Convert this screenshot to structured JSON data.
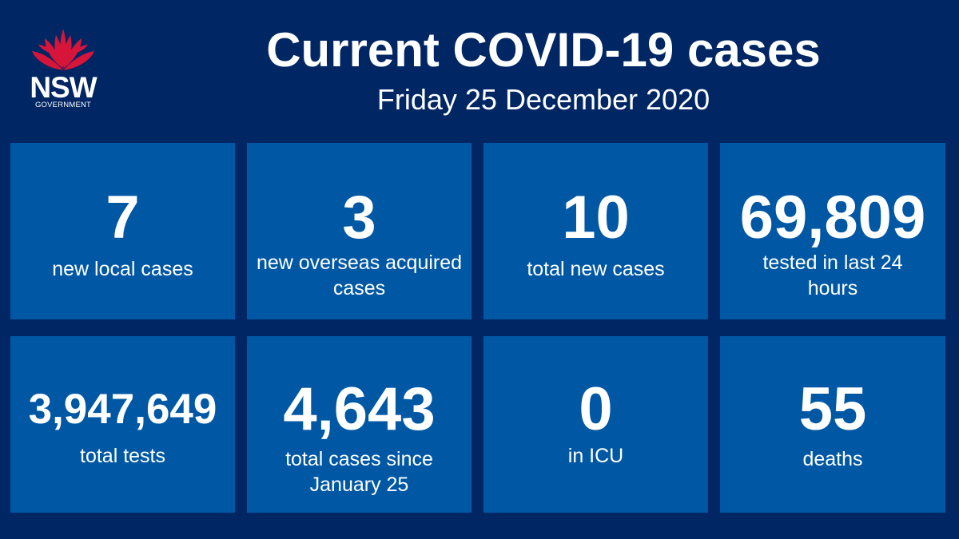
{
  "logo": {
    "name": "nsw-waratah-logo",
    "wordmark": "NSW",
    "subtext": "GOVERNMENT",
    "colors": {
      "petal": "#d7153a",
      "text": "#ffffff"
    }
  },
  "header": {
    "title": "Current COVID-19 cases",
    "date": "Friday 25 December 2020"
  },
  "colors": {
    "background": "#002664",
    "tile": "#0058a4",
    "text": "#ffffff"
  },
  "stats": [
    {
      "value": "7",
      "label": "new local cases"
    },
    {
      "value": "3",
      "label": "new overseas acquired cases"
    },
    {
      "value": "10",
      "label": "total new cases"
    },
    {
      "value": "69,809",
      "label": "tested in last 24 hours"
    },
    {
      "value": "3,947,649",
      "label": "total tests"
    },
    {
      "value": "4,643",
      "label": "total cases since January 25"
    },
    {
      "value": "0",
      "label": "in ICU"
    },
    {
      "value": "55",
      "label": "deaths"
    }
  ]
}
